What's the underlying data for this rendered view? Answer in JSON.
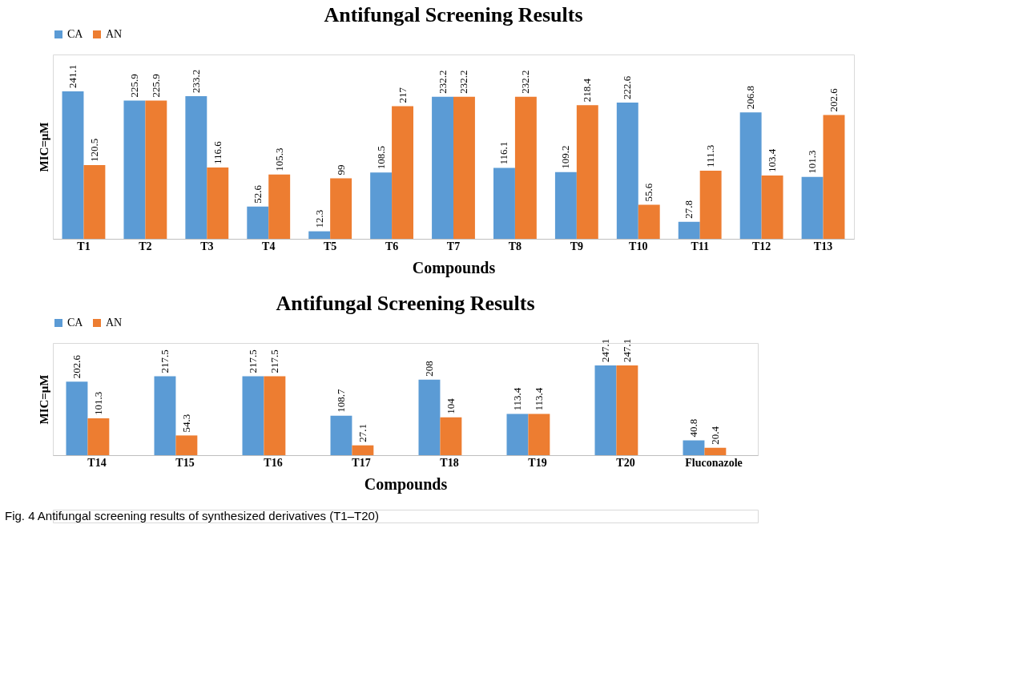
{
  "chart_data": [
    {
      "type": "bar",
      "title": "Antifungal Screening Results",
      "xlabel": "Compounds",
      "ylabel": "MIC=μM",
      "legend": "top",
      "data_labels": true,
      "categories": [
        "T1",
        "T2",
        "T3",
        "T4",
        "T5",
        "T6",
        "T7",
        "T8",
        "T9",
        "T10",
        "T11",
        "T12",
        "T13"
      ],
      "series": [
        {
          "name": "CA",
          "color": "#5b9bd5",
          "values": [
            241.1,
            225.9,
            233.2,
            52.6,
            12.3,
            108.5,
            232.2,
            116.1,
            109.2,
            222.6,
            27.8,
            206.8,
            101.3
          ]
        },
        {
          "name": "AN",
          "color": "#ed7d31",
          "values": [
            120.5,
            225.9,
            116.6,
            105.3,
            99,
            217,
            232.2,
            232.2,
            218.4,
            55.6,
            111.3,
            103.4,
            202.6
          ]
        }
      ]
    },
    {
      "type": "bar",
      "title": "Antifungal Screening Results",
      "xlabel": "Compounds",
      "ylabel": "MIC=μM",
      "legend": "top",
      "data_labels": true,
      "categories": [
        "T14",
        "T15",
        "T16",
        "T17",
        "T18",
        "T19",
        "T20",
        "Fluconazole"
      ],
      "series": [
        {
          "name": "CA",
          "color": "#5b9bd5",
          "values": [
            202.6,
            217.5,
            217.5,
            108.7,
            208,
            113.4,
            247.1,
            40.8
          ]
        },
        {
          "name": "AN",
          "color": "#ed7d31",
          "values": [
            101.3,
            54.3,
            217.5,
            27.1,
            104,
            113.4,
            247.1,
            20.4
          ]
        }
      ],
      "annotations": [
        "Fig. 4 Antifungal screening results of synthesized derivatives (T1–T20)"
      ]
    }
  ]
}
